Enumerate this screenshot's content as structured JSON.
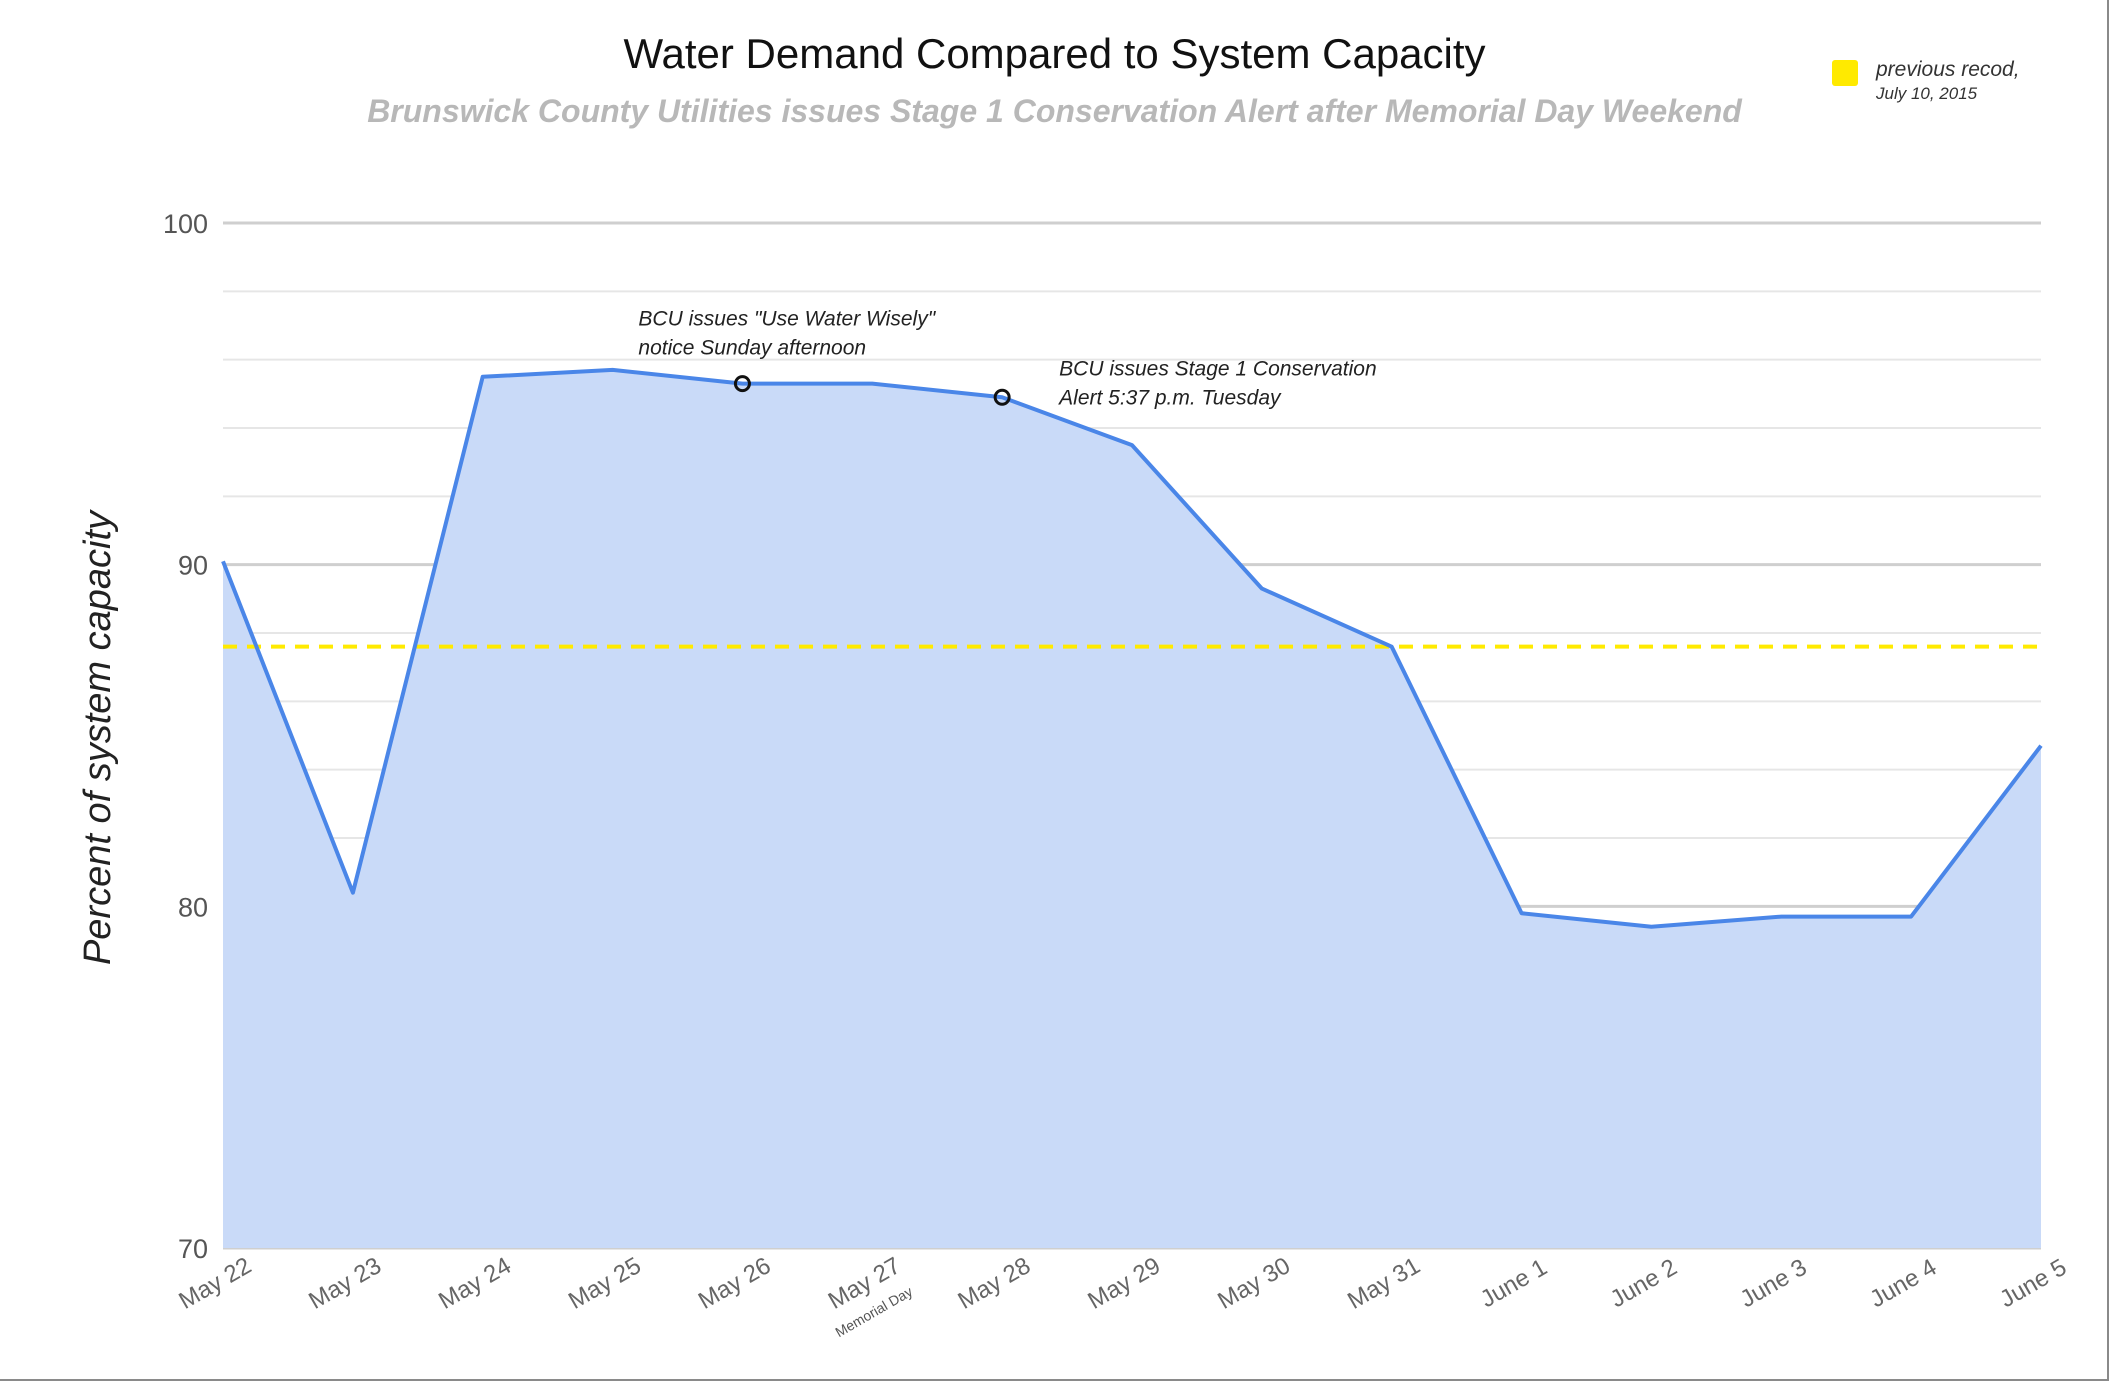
{
  "chart_data": {
    "type": "area",
    "title": "Water Demand Compared to System Capacity",
    "subtitle": "Brunswick County Utilities issues Stage 1 Conservation Alert after Memorial Day Weekend",
    "xlabel": "",
    "ylabel": "Percent of  system capacity",
    "ylim": [
      70,
      100
    ],
    "yticks": [
      70,
      80,
      90,
      100
    ],
    "grid": true,
    "categories": [
      "May 22",
      "May 23",
      "May 24",
      "May 25",
      "May 26",
      "May 27",
      "May 28",
      "May 29",
      "May 30",
      "May 31",
      "June 1",
      "June 2",
      "June 3",
      "June 4",
      "June 5"
    ],
    "category_notes": {
      "May 27": "Memorial Day"
    },
    "series": [
      {
        "values": [
          90.1,
          80.4,
          95.5,
          95.7,
          95.3,
          95.3,
          94.9,
          93.5,
          89.3,
          87.6,
          79.8,
          79.4,
          79.7,
          79.7,
          84.7
        ],
        "color": "#4a86e8",
        "fill": "#c9daf8"
      }
    ],
    "reference_line": {
      "label": "previous recod,",
      "sublabel": "July 10, 2015",
      "value": 87.6,
      "color": "#ffea00",
      "style": "dashed"
    },
    "legend_position": "top-right",
    "annotations": [
      {
        "category": "May 26",
        "value": 95.3,
        "lines": [
          "BCU issues \"Use Water Wisely\"",
          "notice Sunday afternoon"
        ]
      },
      {
        "category": "May 28",
        "value": 94.9,
        "lines": [
          "BCU issues Stage 1 Conservation",
          "Alert 5:37 p.m. Tuesday"
        ]
      }
    ]
  }
}
